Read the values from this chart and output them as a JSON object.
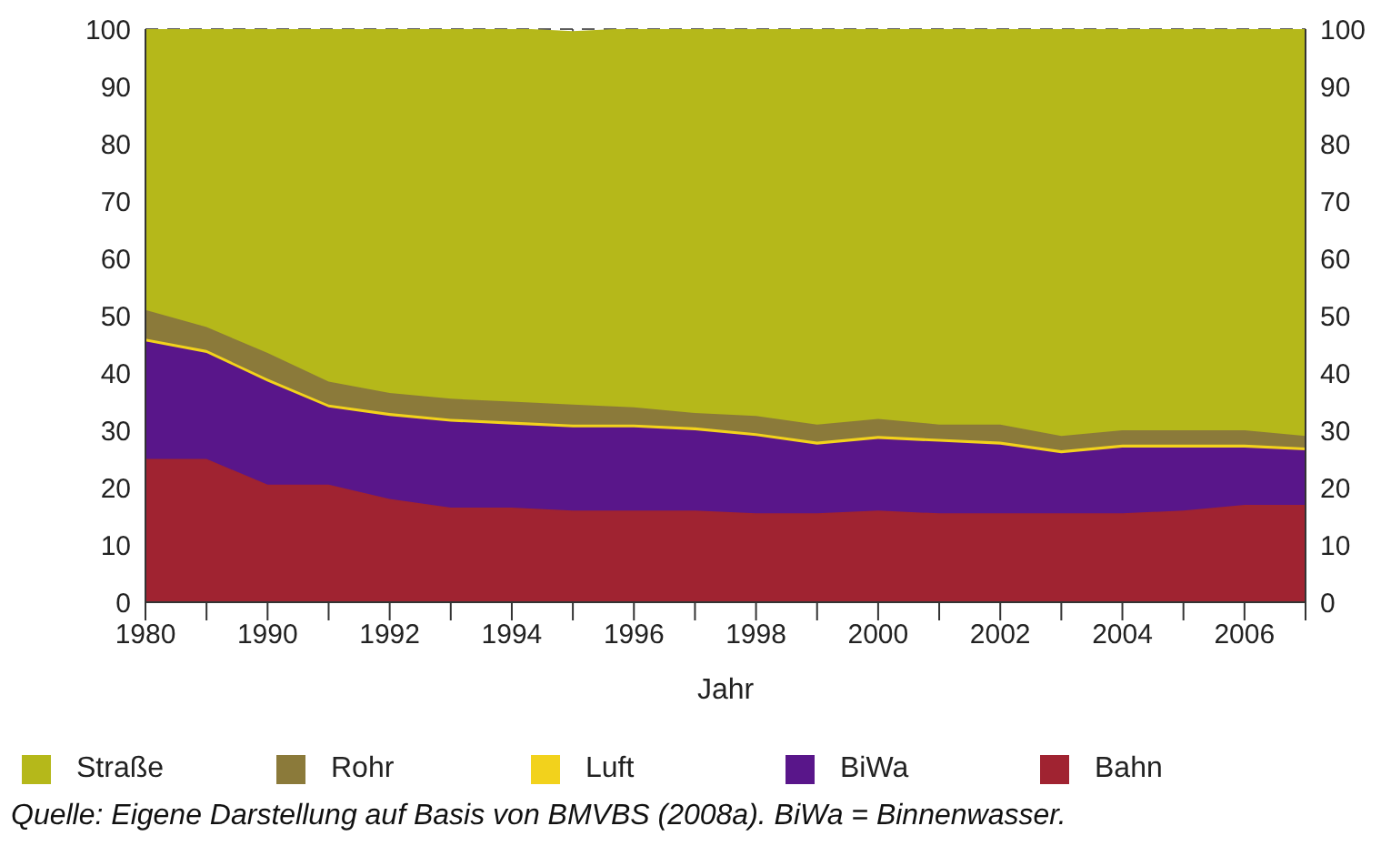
{
  "chart_data": {
    "type": "area",
    "stacked": true,
    "xlabel": "Jahr",
    "categories": [
      "1980",
      null,
      "1990",
      null,
      "1992",
      null,
      "1994",
      null,
      "1996",
      null,
      "1998",
      null,
      "2000",
      null,
      "2002",
      null,
      "2004",
      null,
      "2006",
      null
    ],
    "series": [
      {
        "name": "Bahn",
        "color": "#a02331",
        "values": [
          25,
          25,
          20.5,
          20.5,
          18,
          16.5,
          16.5,
          16,
          16,
          16,
          15.5,
          15.5,
          16,
          15.5,
          15.5,
          15.5,
          15.5,
          16,
          17,
          17
        ]
      },
      {
        "name": "BiWa",
        "color": "#59168a",
        "values": [
          20.5,
          18.5,
          18,
          13.5,
          14.5,
          15,
          14.5,
          14.5,
          14.5,
          14,
          13.5,
          12,
          12.5,
          12.5,
          12,
          10.5,
          11.5,
          11,
          10,
          9.5
        ]
      },
      {
        "name": "Luft",
        "color": "#f2d21c",
        "values": [
          0.5,
          0.5,
          0.5,
          0.5,
          0.5,
          0.5,
          0.5,
          0.5,
          0.5,
          0.5,
          0.5,
          0.5,
          0.5,
          0.5,
          0.5,
          0.5,
          0.5,
          0.5,
          0.5,
          0.5
        ]
      },
      {
        "name": "Rohr",
        "color": "#8b7a3a",
        "values": [
          5,
          4,
          4.5,
          4,
          3.5,
          3.5,
          3.5,
          3.5,
          3,
          2.5,
          3,
          3,
          3,
          2.5,
          3,
          2.5,
          2.5,
          2.5,
          2.5,
          2
        ]
      },
      {
        "name": "Straße",
        "color": "#b5b81a",
        "values": [
          49,
          52,
          56.5,
          61.5,
          63.5,
          64.5,
          65,
          65,
          66,
          67,
          67.5,
          69,
          68,
          69,
          69,
          71,
          70,
          70,
          70,
          71
        ]
      }
    ],
    "ylim": [
      0,
      100
    ],
    "yticks": [
      0,
      10,
      20,
      30,
      40,
      50,
      60,
      70,
      80,
      90,
      100
    ],
    "y2lim": [
      0,
      100
    ],
    "y2ticks": [
      0,
      10,
      20,
      30,
      40,
      50,
      60,
      70,
      80,
      90,
      100
    ],
    "grid": true,
    "legend": "bottom",
    "annotations": [
      "Quelle: Eigene Darstellung auf Basis von BMVBS (2008a). BiWa = Binnenwasser."
    ]
  }
}
